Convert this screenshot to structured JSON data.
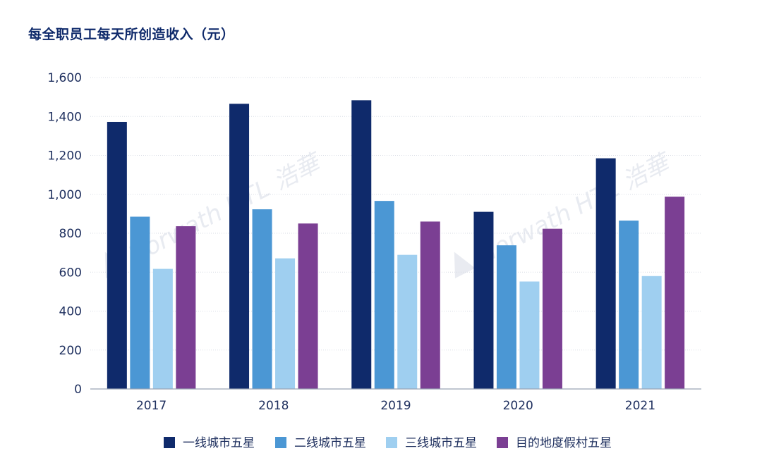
{
  "chart_data": {
    "type": "bar",
    "title": "每全职员工每天所创造收入（元）",
    "xlabel": "",
    "ylabel": "",
    "ylim": [
      0,
      1600
    ],
    "yticks": [
      0,
      200,
      400,
      600,
      800,
      1000,
      1200,
      1400,
      1600
    ],
    "ytick_labels": [
      "0",
      "200",
      "400",
      "600",
      "800",
      "1,000",
      "1,200",
      "1,400",
      "1,600"
    ],
    "categories": [
      "2017",
      "2018",
      "2019",
      "2020",
      "2021"
    ],
    "series": [
      {
        "name": "一线城市五星",
        "color": "#0f2a6b",
        "values": [
          1372,
          1465,
          1483,
          910,
          1185
        ]
      },
      {
        "name": "二线城市五星",
        "color": "#4b97d4",
        "values": [
          885,
          923,
          966,
          738,
          865
        ]
      },
      {
        "name": "三线城市五星",
        "color": "#9fcff0",
        "values": [
          617,
          671,
          689,
          552,
          580
        ]
      },
      {
        "name": "目的地度假村五星",
        "color": "#7b3f93",
        "values": [
          836,
          850,
          860,
          823,
          988
        ]
      }
    ],
    "grid": true,
    "legend_position": "bottom"
  },
  "watermark": {
    "text": "Horwath HTL 浩華"
  }
}
